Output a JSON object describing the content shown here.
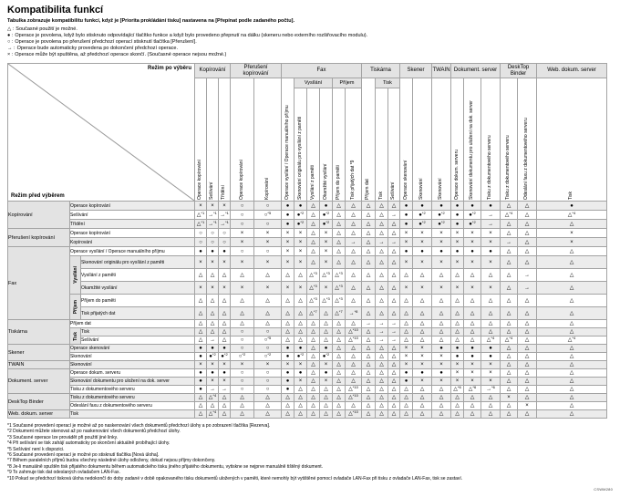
{
  "page": {
    "title": "Kompatibilita funkcí",
    "intro": "Tabulka zobrazuje kompatibilitu funkcí, když je [Priorita prokládání tisku] nastavena na [Přepínat podle zadaného počtu].",
    "page_code": "CSWM280"
  },
  "legend": [
    {
      "symbol": "△",
      "text": "Současné použití je možné."
    },
    {
      "symbol": "●",
      "text": "Operace je povolena, když bylo stisknuto odpovídající tlačítko funkce a když bylo provedeno přepnutí na dálku (skeneru nebo externího rozšiřovacího modulu)."
    },
    {
      "symbol": "○",
      "text": "Operace je povolena po přerušení předchozí operací stisknutí tlačítka [Přerušení]."
    },
    {
      "symbol": "→",
      "text": "Operace bude automaticky provedena po dokončení předchozí operace."
    },
    {
      "symbol": "×",
      "text": "Operace může být spuštěna, až předchozí operace skončí. (Současné operace nejsou možné.)"
    }
  ],
  "table": {
    "corner_top": "Režim po výběru",
    "corner_bottom": "Režim před výběrem",
    "column_groups": [
      {
        "label": "Kopírování",
        "span": 3
      },
      {
        "label": "Přerušení kopírování",
        "span": 2
      },
      {
        "label": "Fax",
        "span": 6
      },
      {
        "label": "Tiskárna",
        "span": 3
      },
      {
        "label": "Skener",
        "span": 2
      },
      {
        "label": "TWAIN",
        "span": 1
      },
      {
        "label": "Dokument. server",
        "span": 3
      },
      {
        "label": "DeskTop Binder",
        "span": 2
      },
      {
        "label": "Web. dokum. server",
        "span": 1
      }
    ],
    "sub_headers": [
      {
        "label": "Vysílání",
        "start": 7,
        "span": 3
      },
      {
        "label": "Příjem",
        "start": 10,
        "span": 2
      },
      {
        "label": "Tisk",
        "start": 13,
        "span": 2
      }
    ],
    "columns": [
      "Operace kopírování",
      "Sešívání",
      "Třídění",
      "Operace kopírování",
      "Kopírování",
      "Operace vysílání / Operace manuálního příjmu",
      "Skenování originálu pro vysílání z paměti",
      "Vysílání z paměti",
      "Okamžité vysílání",
      "Příjem do paměti",
      "Tisk přijatých dat *9",
      "Příjem dat",
      "Tisk",
      "Sešívání",
      "Operace skenování",
      "Skenování",
      "Skenování",
      "Operace dokum. serveru",
      "Skenování dokumentu pro uložení na dok. server",
      "Tisku z dokumentového serveru",
      "Tisku z dokumentového serveru",
      "Odeslání faxu z dokumentového serveru",
      "Tisk"
    ],
    "rows": [
      {
        "group": "Kopírování",
        "group_span": 3,
        "label": "Operace kopírování",
        "cells": [
          "×",
          "×",
          "×",
          "○",
          "○",
          "●",
          "●",
          "△",
          "●",
          "△",
          "△",
          "△",
          "△",
          "△",
          "●",
          "●",
          "●",
          "●",
          "●",
          "●",
          "△",
          "△",
          "●"
        ]
      },
      {
        "label": "Sešívání",
        "cells": [
          "△*1",
          "→*1",
          "→*1",
          "○",
          "○*5",
          "●",
          "●*2",
          "△",
          "●*2",
          "△",
          "△",
          "△",
          "△",
          "→",
          "●",
          "●*2",
          "●*2",
          "●",
          "●*2",
          "→",
          "△*4",
          "△",
          "△*4"
        ]
      },
      {
        "label": "Třídění",
        "cells": [
          "△*1",
          "→*1",
          "→*1",
          "○",
          "○",
          "●",
          "●*2",
          "△",
          "●*2",
          "△",
          "△",
          "△",
          "△",
          "△",
          "●",
          "●*2",
          "●*2",
          "●",
          "●*2",
          "→",
          "△",
          "△",
          "△"
        ]
      },
      {
        "group": "Přerušení kopírování",
        "group_span": 2,
        "label": "Operace kopírování",
        "cells": [
          "○",
          "○",
          "○",
          "×",
          "×",
          "×",
          "×",
          "△",
          "×",
          "△",
          "△",
          "△",
          "△",
          "△",
          "×",
          "×",
          "×",
          "×",
          "×",
          "×",
          "△",
          "△",
          "×"
        ]
      },
      {
        "label": "Kopírování",
        "cells": [
          "○",
          "○",
          "○",
          "×",
          "×",
          "×",
          "×",
          "△",
          "×",
          "△",
          "→",
          "△",
          "→",
          "→",
          "×",
          "×",
          "×",
          "×",
          "×",
          "×",
          "→",
          "△",
          "×"
        ]
      },
      {
        "group": "Fax",
        "group_span": 6,
        "label": "Operace vysílání / Operace manuálního příjmu",
        "cells": [
          "●",
          "●",
          "●",
          "○",
          "○",
          "×",
          "×",
          "△",
          "×",
          "△",
          "△",
          "△",
          "△",
          "△",
          "●",
          "●",
          "●",
          "●",
          "●",
          "●",
          "△",
          "△",
          "△"
        ]
      },
      {
        "sub_label": "Vysílání",
        "sub_span": 3,
        "in_sub": true,
        "label": "Skenování originálu pro vysílání z paměti",
        "cells": [
          "×",
          "×",
          "×",
          "×",
          "×",
          "×",
          "×",
          "△",
          "×",
          "△",
          "△",
          "△",
          "△",
          "△",
          "×",
          "×",
          "×",
          "×",
          "×",
          "×",
          "△",
          "△",
          "△"
        ]
      },
      {
        "in_sub": true,
        "label": "Vysílání z paměti",
        "cells": [
          "△",
          "△",
          "△",
          "△",
          "△",
          "△",
          "△",
          "△*3",
          "△*3",
          "△*3",
          "△",
          "△",
          "△",
          "△",
          "△",
          "△",
          "△",
          "△",
          "△",
          "△",
          "△",
          "→",
          "△"
        ]
      },
      {
        "in_sub": true,
        "label": "Okamžité vysílání",
        "cells": [
          "×",
          "×",
          "×",
          "×",
          "×",
          "×",
          "×",
          "△*3",
          "×",
          "△*3",
          "△",
          "△",
          "△",
          "△",
          "×",
          "×",
          "×",
          "×",
          "×",
          "×",
          "△",
          "→",
          "△"
        ]
      },
      {
        "sub_label": "Příjem",
        "sub_span": 2,
        "in_sub": true,
        "label": "Příjem do paměti",
        "cells": [
          "△",
          "△",
          "△",
          "△",
          "△",
          "△",
          "△",
          "△*3",
          "△*3",
          "△*3",
          "△",
          "△",
          "△",
          "△",
          "△",
          "△",
          "△",
          "△",
          "△",
          "△",
          "△",
          "△",
          "△"
        ]
      },
      {
        "in_sub": true,
        "label": "Tisk přijatých dat",
        "cells": [
          "△",
          "△",
          "△",
          "△",
          "△",
          "△",
          "△",
          "△*7",
          "△",
          "△*7",
          "→*8",
          "△",
          "△",
          "△",
          "△",
          "△",
          "△",
          "△",
          "△",
          "△",
          "△",
          "△",
          "△"
        ]
      },
      {
        "group": "Tiskárna",
        "group_span": 3,
        "label": "Příjem dat",
        "cells": [
          "△",
          "△",
          "△",
          "△",
          "△",
          "△",
          "△",
          "△",
          "△",
          "△",
          "△",
          "→",
          "→",
          "→",
          "△",
          "△",
          "△",
          "△",
          "△",
          "△",
          "△",
          "△",
          "△"
        ]
      },
      {
        "sub_label": "Tisk",
        "sub_span": 2,
        "in_sub": true,
        "label": "Tisk",
        "cells": [
          "△",
          "△",
          "△",
          "○",
          "○",
          "△",
          "△",
          "△",
          "△",
          "△",
          "△*10",
          "△",
          "→",
          "→",
          "△",
          "△",
          "△",
          "△",
          "△",
          "△",
          "△",
          "△",
          "△"
        ]
      },
      {
        "in_sub": true,
        "label": "Sešívání",
        "cells": [
          "△",
          "→",
          "△",
          "○",
          "○*5",
          "△",
          "△",
          "△",
          "△",
          "△",
          "△*10",
          "△",
          "→",
          "→",
          "△",
          "△",
          "△",
          "△",
          "△",
          "△*4",
          "△*4",
          "△",
          "△*4"
        ]
      },
      {
        "group": "Skener",
        "group_span": 2,
        "label": "Operace skenování",
        "cells": [
          "●",
          "●",
          "●",
          "○",
          "○",
          "●",
          "●",
          "△",
          "●",
          "△",
          "△",
          "△",
          "△",
          "△",
          "×",
          "×",
          "●",
          "●",
          "●",
          "●",
          "△",
          "△",
          "△"
        ]
      },
      {
        "label": "Skenování",
        "cells": [
          "●",
          "●*2",
          "●*2",
          "○*2",
          "○*2",
          "●",
          "●*2",
          "△",
          "●*2",
          "△",
          "△",
          "△",
          "△",
          "△",
          "×",
          "×",
          "×",
          "●",
          "●",
          "●",
          "△",
          "△",
          "△"
        ]
      },
      {
        "group": "TWAIN",
        "group_span": 1,
        "label": "Skenování",
        "cells": [
          "×",
          "×",
          "×",
          "×",
          "×",
          "×",
          "×",
          "△",
          "×",
          "△",
          "△",
          "△",
          "△",
          "△",
          "×",
          "×",
          "×",
          "×",
          "×",
          "×",
          "△",
          "△",
          "△"
        ]
      },
      {
        "group": "Dokument. server",
        "group_span": 3,
        "label": "Operace dokum. serveru",
        "cells": [
          "●",
          "●",
          "●",
          "○",
          "○",
          "●",
          "●",
          "△",
          "●",
          "△",
          "△",
          "△",
          "△",
          "△",
          "●",
          "●",
          "●",
          "×",
          "×",
          "×",
          "△",
          "△",
          "△"
        ]
      },
      {
        "label": "Skenování dokumentu pro uložení na dok. server",
        "cells": [
          "●",
          "×",
          "×",
          "○",
          "○",
          "●",
          "×",
          "△",
          "×",
          "△",
          "△",
          "△",
          "△",
          "△",
          "●",
          "×",
          "×",
          "×",
          "×",
          "×",
          "△",
          "△",
          "△"
        ]
      },
      {
        "label": "Tisku z dokumentového serveru",
        "cells": [
          "●",
          "→",
          "→",
          "○",
          "○",
          "●",
          "△",
          "△",
          "△",
          "△",
          "△*10",
          "△",
          "△",
          "△",
          "△",
          "△",
          "△",
          "△*6",
          "△*6",
          "→*6",
          "△",
          "△",
          "△"
        ]
      },
      {
        "group": "DeskTop Binder",
        "group_span": 2,
        "label": "Tisku z dokumentového serveru",
        "cells": [
          "△",
          "△*4",
          "△",
          "△",
          "△",
          "△",
          "△",
          "△",
          "△",
          "△",
          "△*10",
          "△",
          "△",
          "△",
          "△",
          "△",
          "△",
          "△",
          "△",
          "△",
          "×",
          "△",
          "△"
        ]
      },
      {
        "label": "Odeslání faxu z dokumentového serveru",
        "cells": [
          "△",
          "△",
          "△",
          "△",
          "△",
          "△",
          "△",
          "△",
          "△",
          "△",
          "△",
          "△",
          "△",
          "△",
          "△",
          "△",
          "△",
          "△",
          "△",
          "△",
          "△",
          "×",
          "△"
        ]
      },
      {
        "group": "Web. dokum. server",
        "group_span": 1,
        "label": "Tisk",
        "cells": [
          "△",
          "△*4",
          "△",
          "△",
          "△",
          "△",
          "△",
          "△",
          "△",
          "△",
          "△*10",
          "△",
          "△",
          "△",
          "△",
          "△",
          "△",
          "△",
          "△",
          "△",
          "△",
          "△",
          "△"
        ]
      }
    ]
  },
  "footnotes": [
    "*1 Současné provedení operací je možné až po naskenování všech dokumentů předchozí úlohy a po zobrazení tlačítka [Rezerva].",
    "*2 Dokument můžete skenovat až po naskenování všech dokumentů předchozí úlohy.",
    "*3 Současné operace lze provádět při použití jiné linky.",
    "*4 Při sešívání se tisk zahájí automaticky po skončení aktuálně probíhající úlohy.",
    "*5 Sešívání není k dispozici.",
    "*6 Současné provedení operací je možné po stisknutí tlačítka [Nová úloha].",
    "*7 Během paralelních příjmů budou všechny následné úlohy odloženy, dokud nejsou příjmy dokončeny.",
    "*8 Je-li manuálně spuštěn tisk přijatého dokumentu během automatického tisku jiného přijatého dokumentu, vytiskne se nejprve manuálně tištěný dokument.",
    "*9 To zahrnuje tisk dat odeslaných ovladačem LAN-Fax.",
    "*10 Pokud se předchozí tisková úloha nedokončí do doby zadané v době opakovaného tisku dokumentů uložených v paměti, které nemohly být vytištěné pomocí ovladače LAN-Fax při tisku z ovladače LAN-Fax, tisk se zastaví."
  ]
}
